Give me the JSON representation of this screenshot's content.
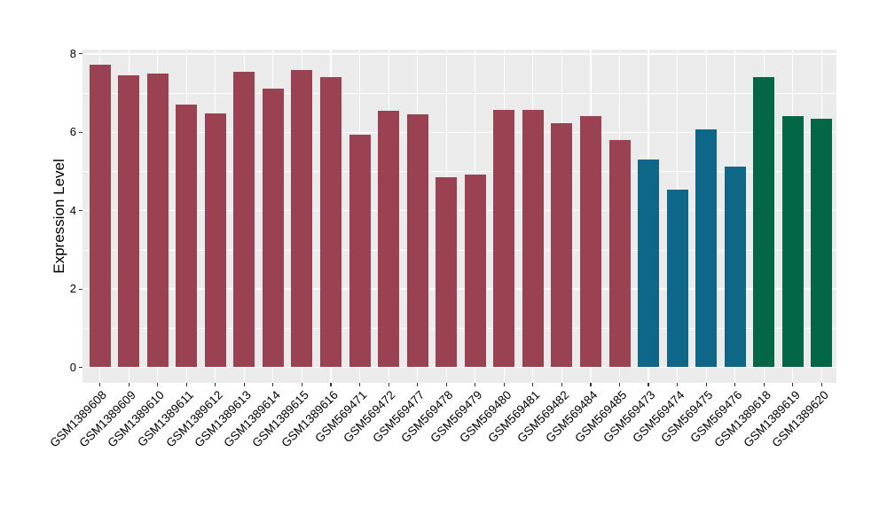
{
  "chart_data": {
    "type": "bar",
    "title": "",
    "xlabel": "",
    "ylabel": "Expression Level",
    "ylim": [
      0,
      8
    ],
    "yticks": [
      0,
      2,
      4,
      6,
      8
    ],
    "yticks_minor": [
      1,
      3,
      5,
      7
    ],
    "grid": "on",
    "legend": "none",
    "panel_background": "#EBEBEB",
    "gridline_color": "#FFFFFF",
    "group_colors": {
      "maroon": "#9B4252",
      "blue": "#0E6787",
      "green": "#036647"
    },
    "bars": [
      {
        "label": "GSM1389608",
        "value": 7.72,
        "group": "maroon"
      },
      {
        "label": "GSM1389609",
        "value": 7.45,
        "group": "maroon"
      },
      {
        "label": "GSM1389610",
        "value": 7.51,
        "group": "maroon"
      },
      {
        "label": "GSM1389611",
        "value": 6.71,
        "group": "maroon"
      },
      {
        "label": "GSM1389612",
        "value": 6.48,
        "group": "maroon"
      },
      {
        "label": "GSM1389613",
        "value": 7.55,
        "group": "maroon"
      },
      {
        "label": "GSM1389614",
        "value": 7.12,
        "group": "maroon"
      },
      {
        "label": "GSM1389615",
        "value": 7.59,
        "group": "maroon"
      },
      {
        "label": "GSM1389616",
        "value": 7.4,
        "group": "maroon"
      },
      {
        "label": "GSM569471",
        "value": 5.93,
        "group": "maroon"
      },
      {
        "label": "GSM569472",
        "value": 6.55,
        "group": "maroon"
      },
      {
        "label": "GSM569477",
        "value": 6.46,
        "group": "maroon"
      },
      {
        "label": "GSM569478",
        "value": 4.85,
        "group": "maroon"
      },
      {
        "label": "GSM569479",
        "value": 4.93,
        "group": "maroon"
      },
      {
        "label": "GSM569480",
        "value": 6.57,
        "group": "maroon"
      },
      {
        "label": "GSM569481",
        "value": 6.58,
        "group": "maroon"
      },
      {
        "label": "GSM569482",
        "value": 6.23,
        "group": "maroon"
      },
      {
        "label": "GSM569484",
        "value": 6.42,
        "group": "maroon"
      },
      {
        "label": "GSM569485",
        "value": 5.81,
        "group": "maroon"
      },
      {
        "label": "GSM569473",
        "value": 5.31,
        "group": "blue"
      },
      {
        "label": "GSM569474",
        "value": 4.53,
        "group": "blue"
      },
      {
        "label": "GSM569475",
        "value": 6.07,
        "group": "blue"
      },
      {
        "label": "GSM569476",
        "value": 5.12,
        "group": "blue"
      },
      {
        "label": "GSM1389618",
        "value": 7.4,
        "group": "green"
      },
      {
        "label": "GSM1389619",
        "value": 6.41,
        "group": "green"
      },
      {
        "label": "GSM1389620",
        "value": 6.35,
        "group": "green"
      }
    ]
  }
}
